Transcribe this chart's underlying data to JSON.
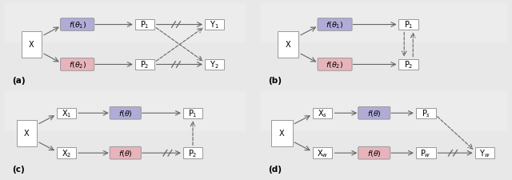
{
  "fig_bg": "#e8e8e8",
  "panel_bg": "#e8e8e8",
  "row_bg_light": "#ebebeb",
  "blue_fill": "#b0acd8",
  "pink_fill": "#e8b4bc",
  "box_edge": "#999999",
  "white": "#ffffff",
  "arrow_color": "#666666",
  "label_fontsize": 7.0,
  "panels": {
    "a_label": "(a)",
    "b_label": "(b)",
    "c_label": "(c)",
    "d_label": "(d)"
  }
}
